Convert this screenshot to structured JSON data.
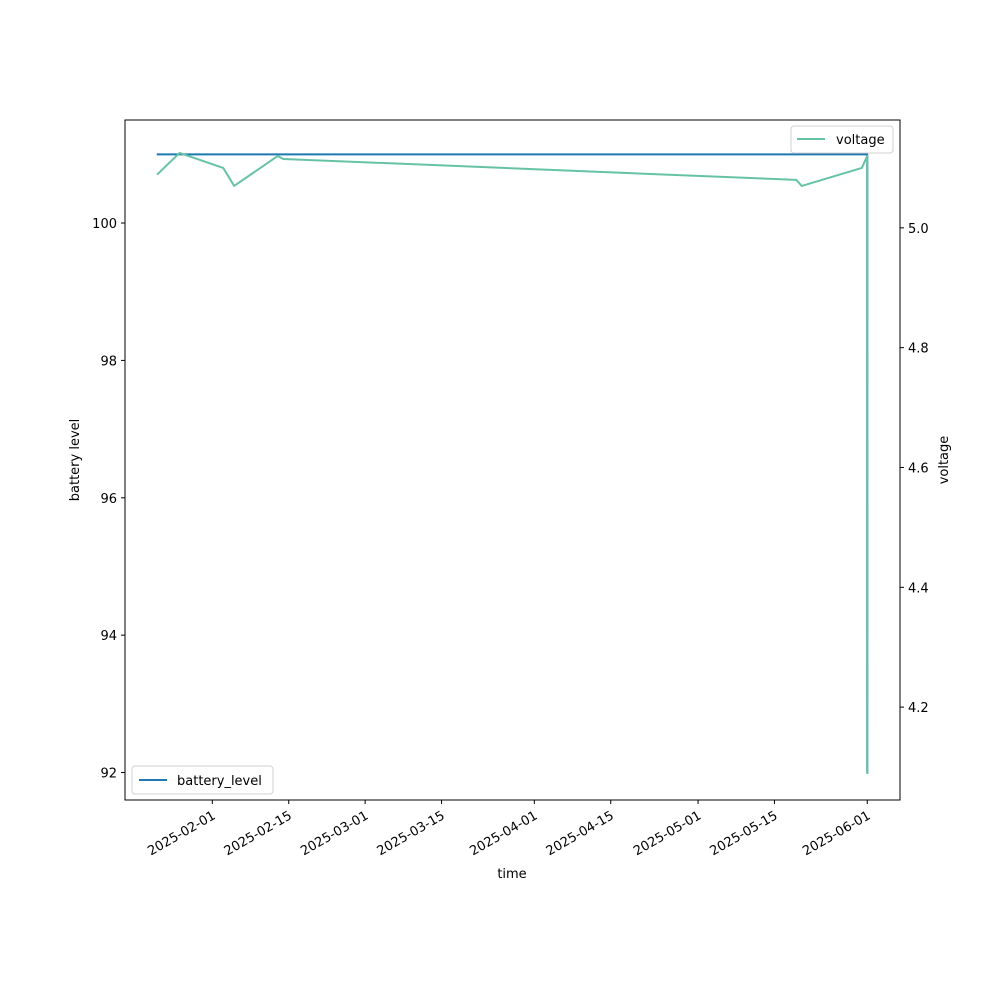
{
  "chart_data": {
    "type": "line",
    "title": "",
    "xlabel": "time",
    "ylabel": "battery level",
    "y2label": "voltage",
    "xlim": [
      "2025-01-16",
      "2025-06-07"
    ],
    "ylim": [
      91.6,
      101.5
    ],
    "y2lim": [
      4.045,
      5.18
    ],
    "x_ticks": [
      "2025-02-01",
      "2025-02-15",
      "2025-03-01",
      "2025-03-15",
      "2025-04-01",
      "2025-04-15",
      "2025-05-01",
      "2025-05-15",
      "2025-06-01"
    ],
    "y_ticks": [
      92,
      94,
      96,
      98,
      100
    ],
    "y2_ticks": [
      4.2,
      4.4,
      4.6,
      4.8,
      5.0
    ],
    "grid": false,
    "series": [
      {
        "name": "battery_level",
        "axis": "left",
        "color": "#1f77b4",
        "legend_position": "lower-left",
        "x": [
          "2025-01-22",
          "2025-06-01T00:00",
          "2025-06-01T00:05",
          "2025-06-01T00:10"
        ],
        "y": [
          101,
          101,
          92,
          92
        ]
      },
      {
        "name": "voltage",
        "axis": "right",
        "color": "#66c2a5",
        "legend_position": "upper-right",
        "x": [
          "2025-01-22",
          "2025-01-26",
          "2025-02-03",
          "2025-02-05",
          "2025-02-13",
          "2025-02-14",
          "2025-05-19",
          "2025-05-20",
          "2025-05-31",
          "2025-06-01T00:00",
          "2025-06-01T00:10"
        ],
        "y": [
          5.09,
          5.125,
          5.1,
          5.07,
          5.12,
          5.115,
          5.08,
          5.07,
          5.1,
          5.12,
          4.09
        ]
      }
    ]
  }
}
